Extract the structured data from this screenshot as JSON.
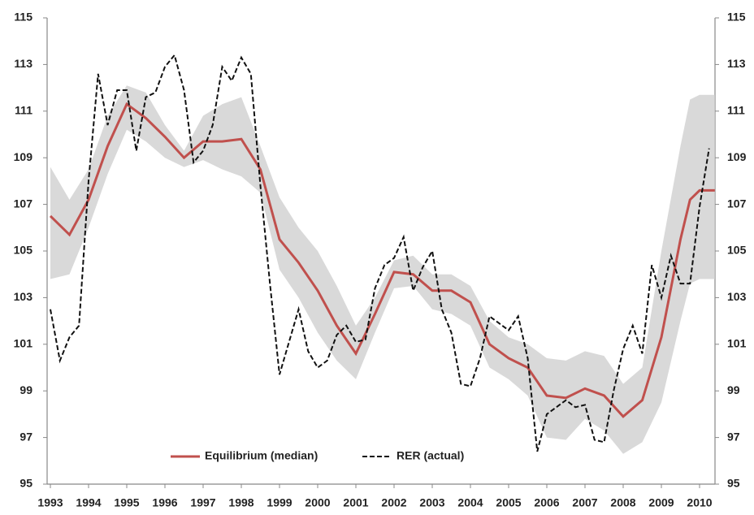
{
  "chart_data": {
    "type": "line",
    "xlim": [
      1993,
      2010.4
    ],
    "xticks": [
      1993,
      1994,
      1995,
      1996,
      1997,
      1998,
      1999,
      2000,
      2001,
      2002,
      2003,
      2004,
      2005,
      2006,
      2007,
      2008,
      2009,
      2010
    ],
    "ylim": [
      95,
      115
    ],
    "yticks": [
      95,
      97,
      99,
      101,
      103,
      105,
      107,
      109,
      111,
      113,
      115
    ],
    "y2lim": [
      95,
      115
    ],
    "y2ticks": [
      95,
      97,
      99,
      101,
      103,
      105,
      107,
      109,
      111,
      113,
      115
    ],
    "legend": "bottom",
    "band": {
      "color": "#d9d9d9",
      "x": [
        1993,
        1993.5,
        1994,
        1994.5,
        1995,
        1995.5,
        1996,
        1996.5,
        1997,
        1997.5,
        1998,
        1998.5,
        1999,
        1999.5,
        2000,
        2000.5,
        2001,
        2001.5,
        2002,
        2002.5,
        2003,
        2003.5,
        2004,
        2004.5,
        2005,
        2005.5,
        2006,
        2006.5,
        2007,
        2007.5,
        2008,
        2008.5,
        2009,
        2009.5,
        2009.75,
        2010,
        2010.4
      ],
      "upper": [
        108.6,
        107.2,
        108.5,
        110.8,
        112.1,
        111.8,
        110.4,
        109.3,
        110.8,
        111.3,
        111.6,
        109.5,
        107.3,
        106.0,
        105.0,
        103.5,
        101.8,
        103.0,
        104.6,
        104.8,
        104.0,
        104.0,
        103.5,
        102.0,
        101.3,
        101.0,
        100.4,
        100.3,
        100.7,
        100.5,
        99.3,
        100.0,
        105.0,
        109.5,
        111.5,
        111.7,
        111.7
      ],
      "lower": [
        103.8,
        104.0,
        106.0,
        108.3,
        110.2,
        109.7,
        109.0,
        108.6,
        108.9,
        108.5,
        108.2,
        107.5,
        104.2,
        103.0,
        101.5,
        100.3,
        99.5,
        101.5,
        103.4,
        103.5,
        102.5,
        102.3,
        101.8,
        100.0,
        99.5,
        98.8,
        97.0,
        96.9,
        97.8,
        97.3,
        96.3,
        96.8,
        98.5,
        102.0,
        103.6,
        103.8,
        103.8
      ]
    },
    "series": [
      {
        "name": "Equilibrium (median)",
        "color": "#c0504d",
        "dash": false,
        "x": [
          1993,
          1993.5,
          1994,
          1994.5,
          1995,
          1995.5,
          1996,
          1996.5,
          1997,
          1997.5,
          1998,
          1998.5,
          1999,
          1999.5,
          2000,
          2000.5,
          2001,
          2001.5,
          2002,
          2002.5,
          2003,
          2003.5,
          2004,
          2004.5,
          2005,
          2005.5,
          2006,
          2006.5,
          2007,
          2007.5,
          2008,
          2008.5,
          2009,
          2009.5,
          2009.75,
          2010,
          2010.4
        ],
        "values": [
          106.5,
          105.7,
          107.2,
          109.5,
          111.3,
          110.7,
          109.9,
          109.0,
          109.7,
          109.7,
          109.8,
          108.5,
          105.5,
          104.5,
          103.3,
          101.8,
          100.6,
          102.3,
          104.1,
          104.0,
          103.3,
          103.3,
          102.8,
          101.0,
          100.4,
          100.0,
          98.8,
          98.7,
          99.1,
          98.8,
          97.9,
          98.6,
          101.3,
          105.5,
          107.2,
          107.6,
          107.6
        ]
      },
      {
        "name": "RER (actual)",
        "color": "#111111",
        "dash": true,
        "x": [
          1993,
          1993.25,
          1993.5,
          1993.75,
          1994,
          1994.25,
          1994.5,
          1994.75,
          1995,
          1995.25,
          1995.5,
          1995.75,
          1996,
          1996.25,
          1996.5,
          1996.75,
          1997,
          1997.25,
          1997.5,
          1997.75,
          1998,
          1998.25,
          1998.5,
          1998.75,
          1999,
          1999.25,
          1999.5,
          1999.75,
          2000,
          2000.25,
          2000.5,
          2000.75,
          2001,
          2001.25,
          2001.5,
          2001.75,
          2002,
          2002.25,
          2002.5,
          2002.75,
          2003,
          2003.25,
          2003.5,
          2003.75,
          2004,
          2004.25,
          2004.5,
          2004.75,
          2005,
          2005.25,
          2005.5,
          2005.75,
          2006,
          2006.25,
          2006.5,
          2006.75,
          2007,
          2007.25,
          2007.5,
          2007.75,
          2008,
          2008.25,
          2008.5,
          2008.75,
          2009,
          2009.25,
          2009.5,
          2009.75,
          2010,
          2010.25
        ],
        "values": [
          102.5,
          100.3,
          101.3,
          101.8,
          108.0,
          112.6,
          110.4,
          111.9,
          111.9,
          109.3,
          111.6,
          111.8,
          112.9,
          113.4,
          111.9,
          108.8,
          109.3,
          110.4,
          112.9,
          112.3,
          113.3,
          112.6,
          107.8,
          103.6,
          99.7,
          101.1,
          102.5,
          100.7,
          100.0,
          100.3,
          101.4,
          101.8,
          101.1,
          101.2,
          103.4,
          104.4,
          104.7,
          105.6,
          103.3,
          104.3,
          105.0,
          102.5,
          101.5,
          99.3,
          99.2,
          100.4,
          102.2,
          101.9,
          101.6,
          102.2,
          100.4,
          96.4,
          98.0,
          98.3,
          98.6,
          98.3,
          98.4,
          96.9,
          96.8,
          99.0,
          100.8,
          101.8,
          100.6,
          104.4,
          103.0,
          104.8,
          103.6,
          103.6,
          106.9,
          109.4
        ]
      }
    ]
  }
}
